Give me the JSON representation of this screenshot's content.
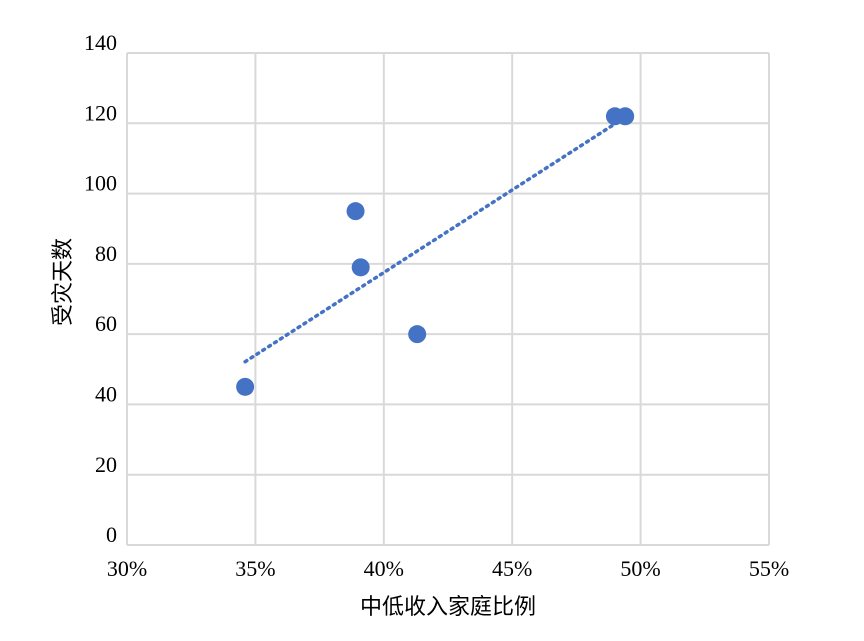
{
  "chart_data": {
    "type": "scatter",
    "x_label": "中低收入家庭比例",
    "y_label": "受灾天数",
    "series": [
      {
        "color": "#4472c4",
        "x": [
          34.6,
          38.9,
          39.1,
          41.3,
          49.0,
          49.4
        ],
        "values": [
          45,
          95,
          79,
          60,
          122,
          122
        ]
      }
    ],
    "trendline": "linear",
    "xlim": [
      30,
      55
    ],
    "xticks": [
      {
        "value": 30,
        "label": "30%"
      },
      {
        "value": 35,
        "label": "35%"
      },
      {
        "value": 40,
        "label": "40%"
      },
      {
        "value": 45,
        "label": "45%"
      },
      {
        "value": 50,
        "label": "50%"
      },
      {
        "value": 55,
        "label": "55%"
      }
    ],
    "ylim": [
      0,
      140
    ],
    "yticks": [
      0,
      20,
      40,
      60,
      80,
      100,
      120,
      140
    ],
    "grid": true
  }
}
